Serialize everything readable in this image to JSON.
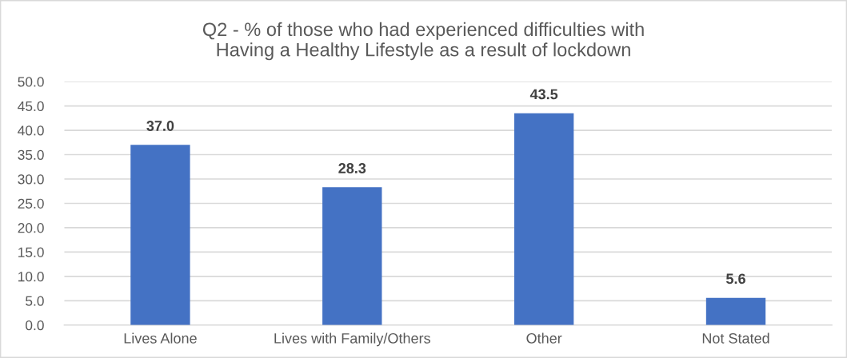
{
  "chart_data": {
    "type": "bar",
    "title": "Q2 - % of those who had experienced difficulties with\nHaving a Healthy Lifestyle as a result of lockdown",
    "categories": [
      "Lives Alone",
      "Lives with Family/Others",
      "Other",
      "Not Stated"
    ],
    "values": [
      37.0,
      28.3,
      43.5,
      5.6
    ],
    "value_labels": [
      "37.0",
      "28.3",
      "43.5",
      "5.6"
    ],
    "color": "#4472c4",
    "ylim": [
      0,
      50
    ],
    "yticks": [
      {
        "value": 0,
        "label": "0.0"
      },
      {
        "value": 5,
        "label": "5.0"
      },
      {
        "value": 10,
        "label": "10.0"
      },
      {
        "value": 15,
        "label": "15.0"
      },
      {
        "value": 20,
        "label": "20.0"
      },
      {
        "value": 25,
        "label": "25.0"
      },
      {
        "value": 30,
        "label": "30.0"
      },
      {
        "value": 35,
        "label": "35.0"
      },
      {
        "value": 40,
        "label": "40.0"
      },
      {
        "value": 45,
        "label": "45.0"
      },
      {
        "value": 50,
        "label": "50.0"
      }
    ],
    "grid": "y",
    "legend": false
  }
}
